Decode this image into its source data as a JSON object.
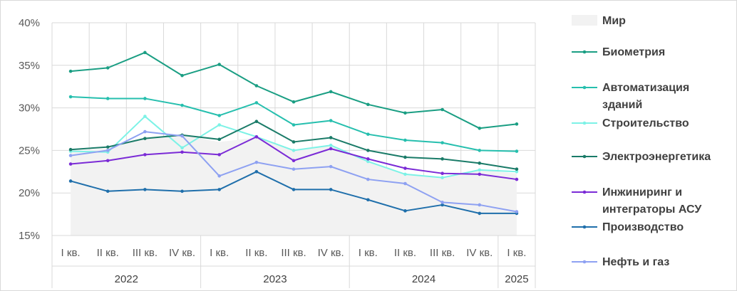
{
  "chart_data": {
    "type": "line",
    "categories": [
      "I кв.",
      "II кв.",
      "III кв.",
      "IV кв.",
      "I кв.",
      "II кв.",
      "III кв.",
      "IV кв.",
      "I кв.",
      "II кв.",
      "III кв.",
      "IV кв.",
      "I кв."
    ],
    "years": [
      {
        "label": "2022",
        "span": 4
      },
      {
        "label": "2023",
        "span": 4
      },
      {
        "label": "2024",
        "span": 4
      },
      {
        "label": "2025",
        "span": 1
      }
    ],
    "ylim": [
      15,
      40
    ],
    "yticks": [
      "15%",
      "20%",
      "25%",
      "30%",
      "35%",
      "40%"
    ],
    "grid": true,
    "legend_position": "right",
    "area": {
      "name": "Мир",
      "color": "#f2f2f2",
      "values": [
        25.0,
        25.2,
        26.5,
        26.8,
        26.0,
        26.5,
        25.0,
        25.5,
        23.7,
        22.3,
        21.8,
        22.7,
        22.3
      ]
    },
    "series": [
      {
        "name": "Биометрия",
        "color": "#1a9e83",
        "values": [
          34.3,
          34.7,
          36.5,
          33.8,
          35.1,
          32.6,
          30.7,
          31.9,
          30.4,
          29.4,
          29.8,
          27.6,
          28.1
        ]
      },
      {
        "name": "Автоматизация зданий",
        "color": "#26bfae",
        "legend_lines": [
          "Автоматизация",
          "зданий"
        ],
        "values": [
          31.3,
          31.1,
          31.1,
          30.3,
          29.1,
          30.6,
          28.0,
          28.5,
          26.9,
          26.2,
          25.9,
          25.0,
          24.9
        ]
      },
      {
        "name": "Строительство",
        "color": "#7df2e6",
        "values": [
          24.9,
          24.8,
          29.0,
          25.3,
          28.0,
          26.6,
          25.0,
          25.6,
          23.7,
          22.2,
          21.8,
          22.7,
          22.5
        ]
      },
      {
        "name": "Электроэнергетика",
        "color": "#1a7b68",
        "values": [
          25.1,
          25.4,
          26.4,
          26.8,
          26.3,
          28.4,
          26.0,
          26.5,
          25.0,
          24.2,
          24.0,
          23.5,
          22.8
        ]
      },
      {
        "name": "Инжиниринг и интеграторы АСУ",
        "color": "#7b2bd6",
        "legend_lines": [
          "Инжиниринг и",
          "интеграторы АСУ"
        ],
        "values": [
          23.4,
          23.8,
          24.5,
          24.8,
          24.5,
          26.6,
          23.8,
          25.2,
          24.0,
          22.9,
          22.3,
          22.2,
          21.6
        ]
      },
      {
        "name": "Производство",
        "color": "#1f6fab",
        "values": [
          21.4,
          20.2,
          20.4,
          20.2,
          20.4,
          22.5,
          20.4,
          20.4,
          19.2,
          17.9,
          18.6,
          17.6,
          17.6
        ]
      },
      {
        "name": "Нефть и газ",
        "color": "#8ea1f2",
        "values": [
          24.4,
          25.0,
          27.2,
          26.7,
          22.0,
          23.6,
          22.8,
          23.1,
          21.6,
          21.1,
          18.9,
          18.6,
          17.8
        ]
      }
    ]
  },
  "legend_order": [
    "Мир",
    "Биометрия",
    "Автоматизация зданий",
    "Строительство",
    "Электроэнергетика",
    "Инжиниринг и интеграторы АСУ",
    "Производство",
    "Нефть и газ"
  ]
}
